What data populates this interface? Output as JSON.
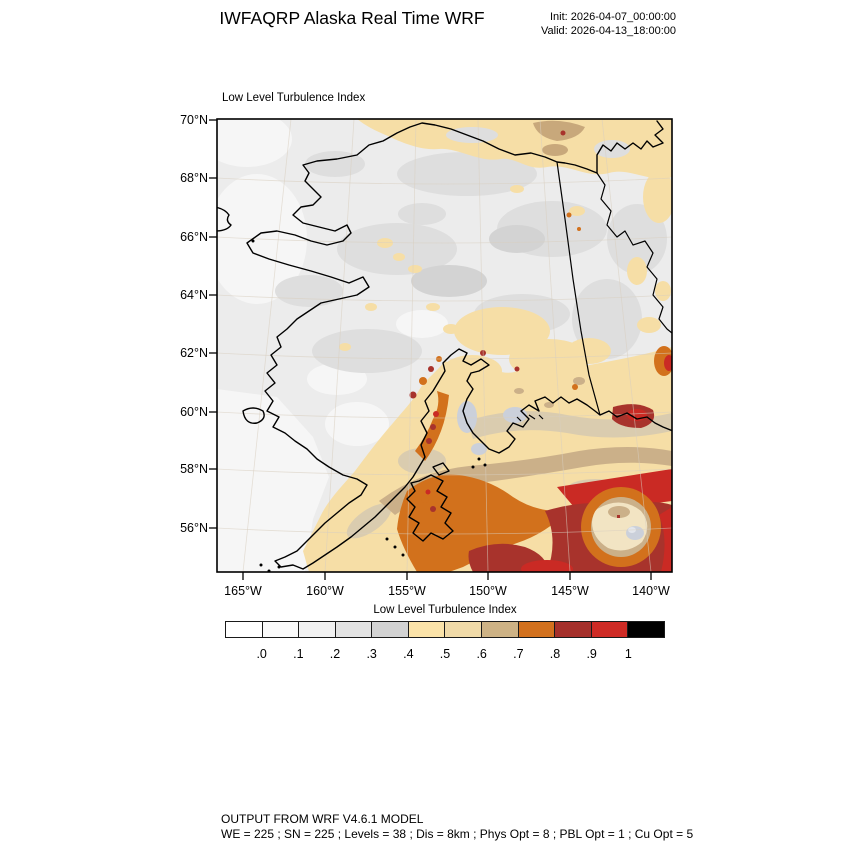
{
  "header": {
    "title": "IWFAQRP Alaska Real Time WRF",
    "init": "Init: 2026-04-07_00:00:00",
    "valid": "Valid: 2026-04-13_18:00:00"
  },
  "map": {
    "field_label": "Low Level Turbulence Index",
    "lat_ticks": [
      "70°N",
      "68°N",
      "66°N",
      "64°N",
      "62°N",
      "60°N",
      "58°N",
      "56°N"
    ],
    "lon_ticks": [
      "165°W",
      "160°W",
      "155°W",
      "150°W",
      "145°W",
      "140°W"
    ]
  },
  "colorbar": {
    "label": "Low Level Turbulence Index",
    "tick_labels": [
      ".0",
      ".1",
      ".2",
      ".3",
      ".4",
      ".5",
      ".6",
      ".7",
      ".8",
      ".9",
      "1"
    ],
    "colors": [
      "#FFFFFF",
      "#FAFAFA",
      "#F1F1F1",
      "#E3E3E3",
      "#D2D2D2",
      "#FBE3A9",
      "#F0DAA8",
      "#CDB285",
      "#D2711E",
      "#A5302B",
      "#CE2B25",
      "#000000"
    ]
  },
  "footer": {
    "line1": "OUTPUT FROM WRF V4.6.1 MODEL",
    "line2": "WE = 225 ; SN = 225 ; Levels = 38 ; Dis = 8km ; Phys Opt = 8 ; PBL Opt = 1 ; Cu Opt = 5"
  },
  "palette": {
    "base": "#ECECEC",
    "white2": "#F6F6F6",
    "gray1": "#DEDEDE",
    "gray2": "#D3D3D3",
    "cream": "#F6DEA6",
    "creamlight": "#F2E4C3",
    "graytan": "#DACCAF",
    "tan": "#CBB089",
    "tandark": "#C8A87B",
    "orange": "#D2711C",
    "brick": "#A8332C",
    "red": "#CA2A24",
    "bluegray": "#CBD0DA",
    "bluelight": "#E3E6EC",
    "grat": "#D9CFC0"
  },
  "chart_data": {
    "type": "heatmap",
    "title": "Low Level Turbulence Index",
    "x_tick_labels": [
      "165°W",
      "160°W",
      "155°W",
      "150°W",
      "145°W",
      "140°W"
    ],
    "y_tick_labels": [
      "70°N",
      "68°N",
      "66°N",
      "64°N",
      "62°N",
      "60°N",
      "58°N",
      "56°N"
    ],
    "scale_boundaries": [
      0.0,
      0.1,
      0.2,
      0.3,
      0.4,
      0.5,
      0.6,
      0.7,
      0.8,
      0.9,
      1.0
    ],
    "scale_colors": [
      "#FFFFFF",
      "#FAFAFA",
      "#F1F1F1",
      "#E3E3E3",
      "#D2D2D2",
      "#FBE3A9",
      "#F0DAA8",
      "#CDB285",
      "#D2711E",
      "#A5302B",
      "#CE2B25",
      "#000000"
    ],
    "legend_position": "bottom"
  }
}
